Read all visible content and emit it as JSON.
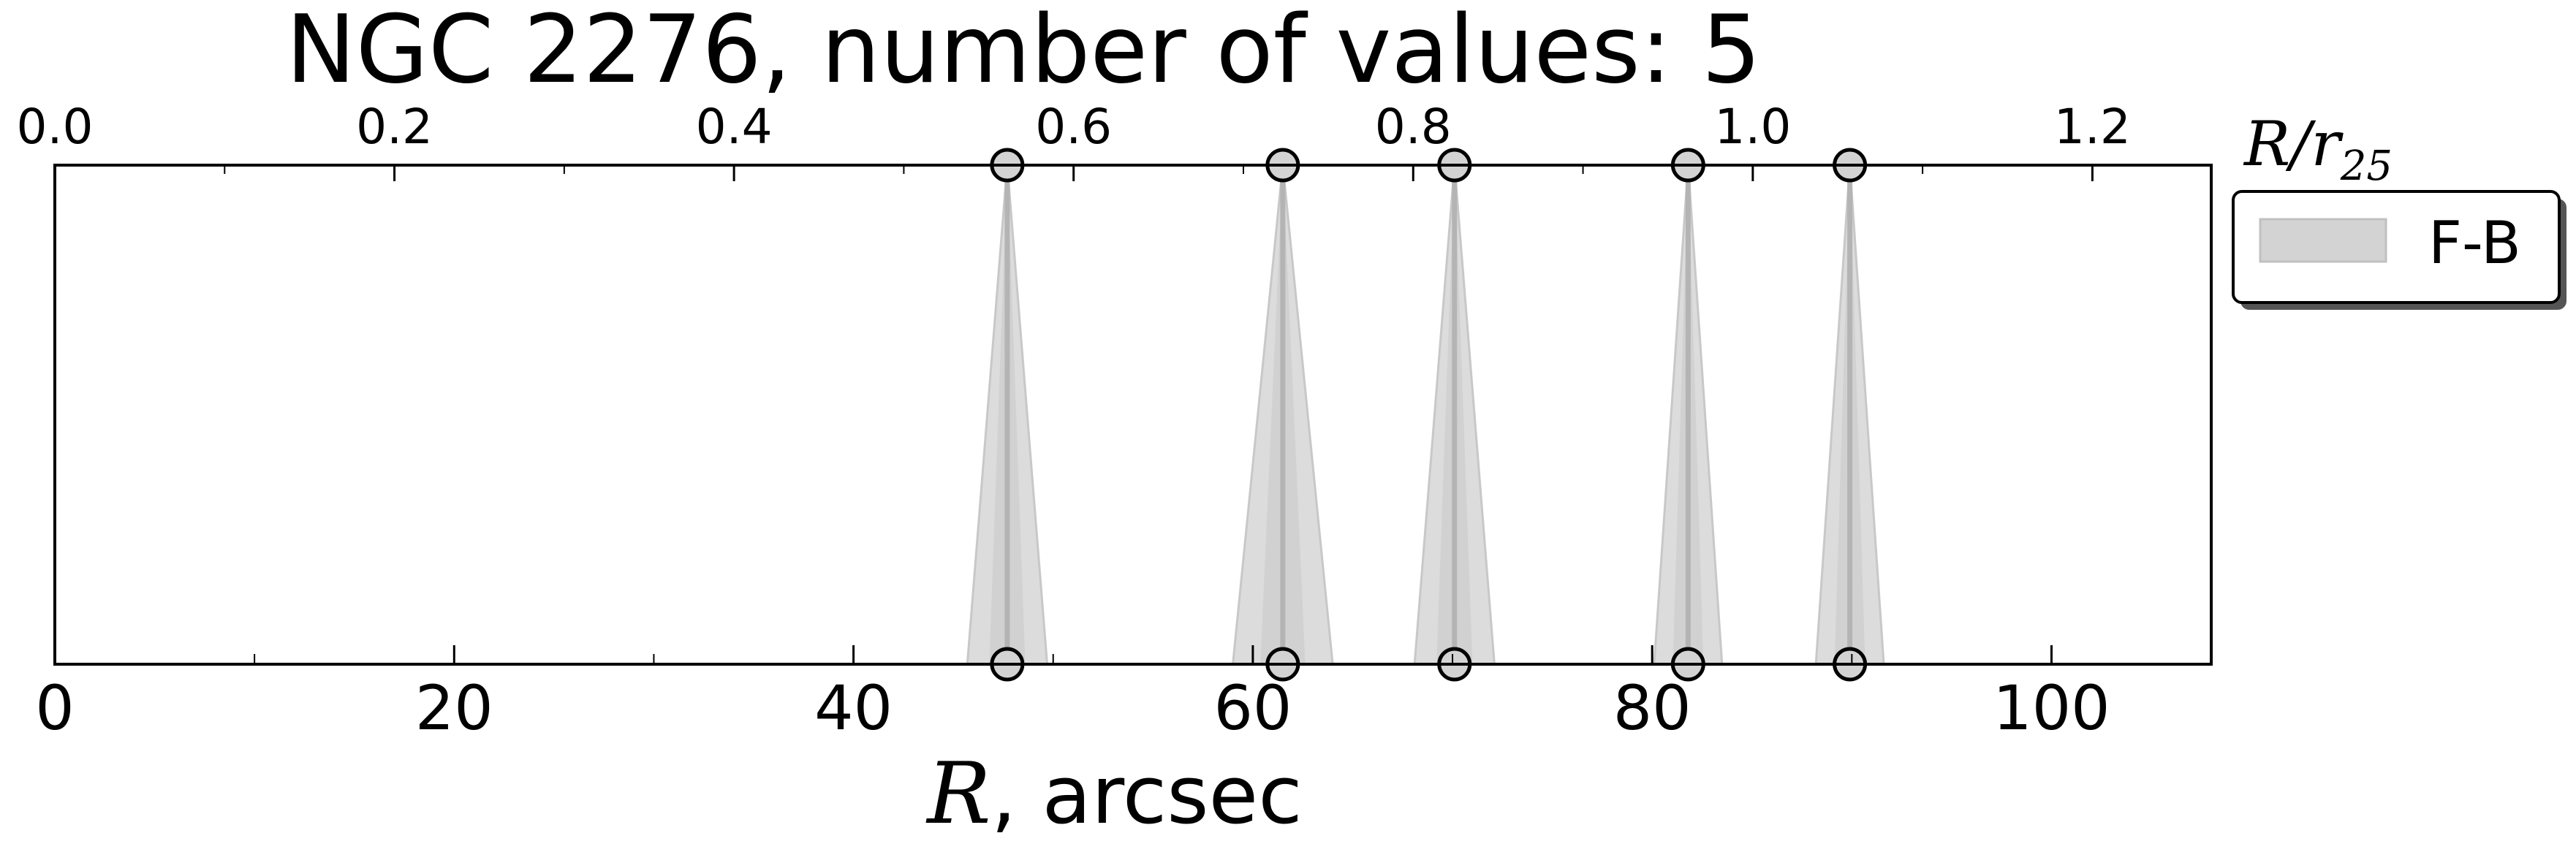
{
  "chart_data": {
    "type": "area",
    "title": "NGC 2276, number of values: 5",
    "xlabel_math": "R",
    "xlabel_rest": ", arcsec",
    "top_axis_label_base": "R/r",
    "top_axis_label_sub": "25",
    "xlim": [
      0,
      108
    ],
    "top_xlim": [
      0.0,
      1.27
    ],
    "x_ticks": [
      "0",
      "20",
      "40",
      "60",
      "80",
      "100"
    ],
    "x_tick_values": [
      0,
      20,
      40,
      60,
      80,
      100
    ],
    "top_ticks": [
      "0.0",
      "0.2",
      "0.4",
      "0.6",
      "0.8",
      "1.0",
      "1.2"
    ],
    "top_tick_values": [
      0.0,
      0.2,
      0.4,
      0.6,
      0.8,
      1.0,
      1.2
    ],
    "legend": "upper-right, outside plot",
    "series": [
      {
        "name": "F-B",
        "color": "#d3d3d3",
        "line_color": "#b4b4b4",
        "x": [
          47.7,
          61.5,
          70.1,
          81.8,
          89.9
        ],
        "spread": [
          2.0,
          2.5,
          2.0,
          1.7,
          1.7
        ]
      }
    ],
    "grid": false
  }
}
